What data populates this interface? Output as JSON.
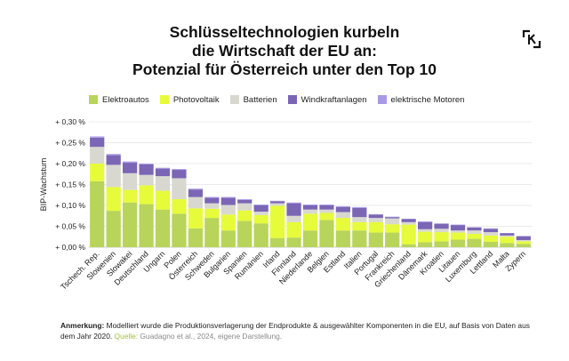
{
  "title": {
    "line1": "Schlüsseltechnologien kurbeln",
    "line2": "die Wirtschaft der EU an:",
    "line3": "Potenzial für Österreich unter den Top 10"
  },
  "logo_icon": "k-bracket-logo-icon",
  "chart_data": {
    "type": "bar",
    "stacked": true,
    "ylabel": "BIP-Wachstum",
    "ylim": [
      0,
      0.3
    ],
    "yticks": [
      0.0,
      0.05,
      0.1,
      0.15,
      0.2,
      0.25,
      0.3
    ],
    "ytick_labels": [
      "+ 0,00 %",
      "+ 0,05 %",
      "+ 0,10 %",
      "+ 0,15 %",
      "+ 0,20 %",
      "+ 0,25 %",
      "+ 0,30 %"
    ],
    "grid": true,
    "legend_position": "top",
    "categories": [
      "Tschech. Rep.",
      "Slowenien",
      "Slowakei",
      "Deutschland",
      "Ungarn",
      "Polen",
      "Österreich",
      "Schweden",
      "Bulgarien",
      "Spanien",
      "Rumänien",
      "Irland",
      "Finnland",
      "Niederlande",
      "Belgien",
      "Estland",
      "Italien",
      "Portugal",
      "Frankreich",
      "Griechenland",
      "Dänemark",
      "Kroatien",
      "Litauen",
      "Luxemburg",
      "Lettland",
      "Malta",
      "Zypern"
    ],
    "series": [
      {
        "name": "Elektroautos",
        "color": "#b8d45a",
        "values": [
          0.158,
          0.087,
          0.107,
          0.103,
          0.09,
          0.08,
          0.045,
          0.07,
          0.04,
          0.063,
          0.057,
          0.022,
          0.023,
          0.04,
          0.065,
          0.04,
          0.04,
          0.035,
          0.035,
          0.007,
          0.012,
          0.014,
          0.018,
          0.02,
          0.013,
          0.01,
          0.008
        ]
      },
      {
        "name": "Photovoltaik",
        "color": "#e6fb3a",
        "values": [
          0.042,
          0.057,
          0.03,
          0.045,
          0.045,
          0.035,
          0.048,
          0.022,
          0.038,
          0.025,
          0.02,
          0.077,
          0.037,
          0.04,
          0.017,
          0.03,
          0.02,
          0.025,
          0.02,
          0.047,
          0.025,
          0.022,
          0.017,
          0.012,
          0.015,
          0.015,
          0.006
        ]
      },
      {
        "name": "Batterien",
        "color": "#d8d8d0",
        "values": [
          0.04,
          0.053,
          0.04,
          0.025,
          0.035,
          0.05,
          0.027,
          0.013,
          0.023,
          0.017,
          0.008,
          0.006,
          0.015,
          0.01,
          0.008,
          0.014,
          0.012,
          0.01,
          0.014,
          0.006,
          0.006,
          0.008,
          0.005,
          0.008,
          0.008,
          0.003,
          0.003
        ]
      },
      {
        "name": "Windkraftanlagen",
        "color": "#7b66b5",
        "values": [
          0.022,
          0.023,
          0.025,
          0.025,
          0.018,
          0.02,
          0.018,
          0.013,
          0.017,
          0.008,
          0.015,
          0.005,
          0.03,
          0.01,
          0.01,
          0.012,
          0.022,
          0.008,
          0.003,
          0.007,
          0.017,
          0.012,
          0.013,
          0.007,
          0.008,
          0.005,
          0.009
        ]
      },
      {
        "name": "elektrische Motoren",
        "color": "#a99ae8",
        "values": [
          0.003,
          0.003,
          0.003,
          0.002,
          0.002,
          0.002,
          0.002,
          0.002,
          0.002,
          0.002,
          0.002,
          0.001,
          0.002,
          0.002,
          0.002,
          0.002,
          0.002,
          0.001,
          0.001,
          0.001,
          0.002,
          0.001,
          0.001,
          0.001,
          0.001,
          0.001,
          0.001
        ]
      }
    ]
  },
  "note": {
    "label": "Anmerkung:",
    "text": "Modelliert wurde die Produktionsverlagerung der Endprodukte & ausgewählter Komponenten in die EU, auf Basis von Daten aus dem Jahr 2020.",
    "source_label": "Quelle:",
    "source": "Guadagno et al., 2024, eigene Darstellung."
  }
}
